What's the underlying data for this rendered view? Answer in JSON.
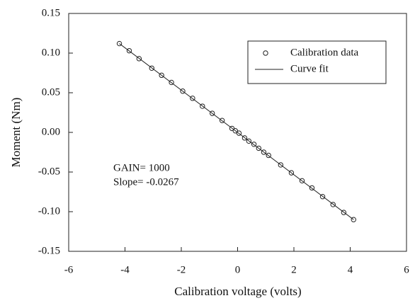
{
  "chart_data": {
    "type": "scatter",
    "xlabel": "Calibration voltage (volts)",
    "ylabel": "Moment (Nm)",
    "xlim": [
      -6,
      6
    ],
    "xticks": [
      -6,
      -4,
      -2,
      0,
      2,
      4,
      6
    ],
    "ylim": [
      -0.15,
      0.15
    ],
    "yticks": [
      -0.15,
      {
        "value": -0.1,
        "label": "-0.10"
      },
      -0.05,
      {
        "value": 0,
        "label": "0.00"
      },
      0.05,
      {
        "value": 0.1,
        "label": "0.10"
      },
      0.15
    ],
    "legend": "upper right",
    "annotations": [
      "GAIN= 1000",
      "Slope= -0.0267"
    ],
    "series": [
      {
        "name": "Calibration data",
        "type": "scatter",
        "color": "#222",
        "x": [
          -4.2,
          -3.85,
          -3.5,
          -3.05,
          -2.7,
          -2.35,
          -1.95,
          -1.6,
          -1.25,
          -0.9,
          -0.55,
          -0.2,
          -0.08,
          0.05,
          0.25,
          0.4,
          0.58,
          0.75,
          0.93,
          1.1,
          1.53,
          1.91,
          2.29,
          2.64,
          3.02,
          3.39,
          3.77,
          4.12
        ],
        "values": [
          0.112,
          0.103,
          0.093,
          0.081,
          0.072,
          0.063,
          0.052,
          0.043,
          0.033,
          0.024,
          0.015,
          0.005,
          0.002,
          -0.001,
          -0.007,
          -0.011,
          -0.015,
          -0.02,
          -0.025,
          -0.029,
          -0.041,
          -0.051,
          -0.061,
          -0.07,
          -0.081,
          -0.091,
          -0.101,
          -0.11
        ]
      },
      {
        "name": "Curve fit",
        "type": "line",
        "color": "#222",
        "x": [
          -4.2,
          4.12
        ],
        "values": [
          0.112,
          -0.11
        ]
      }
    ]
  }
}
